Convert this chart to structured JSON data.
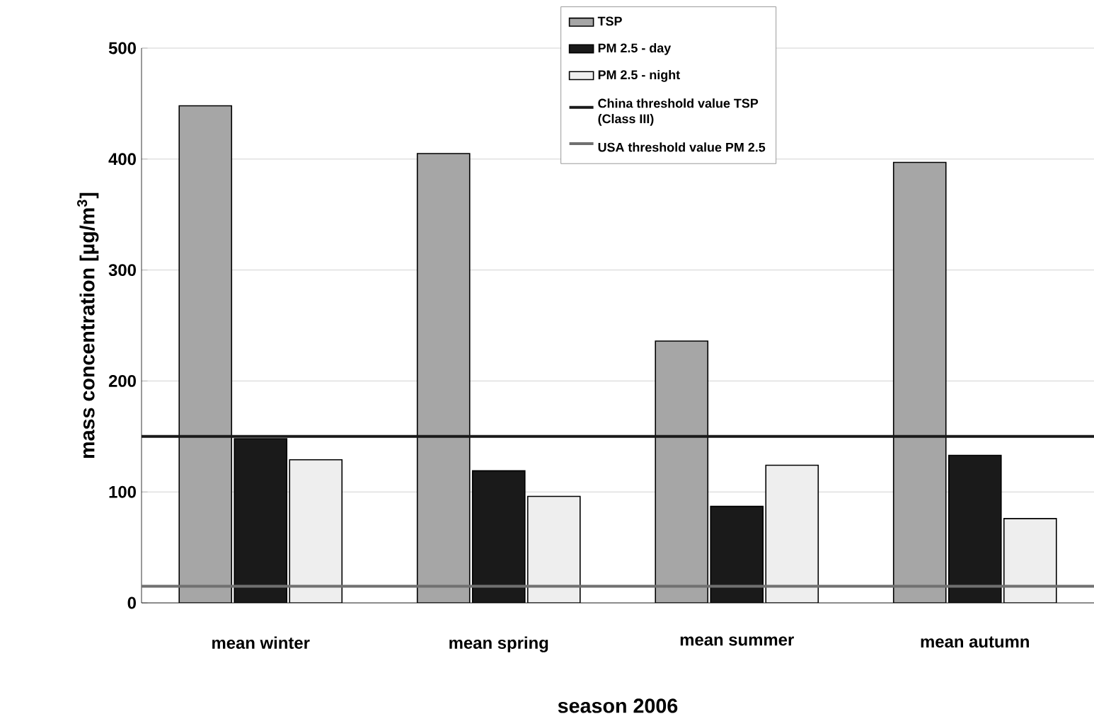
{
  "chart_data": {
    "type": "bar",
    "xlabel": "season 2006",
    "ylabel": "mass concentration [µg/m$^{3}$]",
    "categories": [
      "mean winter",
      "mean spring",
      "mean summer",
      "mean autumn"
    ],
    "series": [
      {
        "name": "TSP",
        "color": "#a6a6a6",
        "values": [
          448,
          405,
          236,
          397
        ]
      },
      {
        "name": "PM 2.5 - day",
        "color": "#1a1a1a",
        "values": [
          148,
          119,
          87,
          133
        ]
      },
      {
        "name": "PM 2.5 - night",
        "color": "#eeeeee",
        "values": [
          129,
          96,
          124,
          76
        ]
      }
    ],
    "ylim": [
      0,
      500
    ],
    "yticks": [
      0,
      100,
      200,
      300,
      400,
      500
    ],
    "grid": "y",
    "legend": "top",
    "ref_lines": [
      {
        "axis": "y",
        "value": 150,
        "label": "China threshold value TSP (Class III)",
        "color": "#1a1a1a"
      },
      {
        "axis": "y",
        "value": 15,
        "label": "USA threshold value PM 2.5",
        "color": "#707070"
      }
    ]
  }
}
